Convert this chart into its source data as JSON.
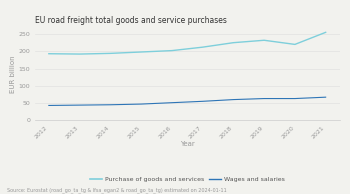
{
  "title": "EU road freight total goods and service purchases",
  "years": [
    2012,
    2013,
    2014,
    2015,
    2016,
    2017,
    2018,
    2019,
    2020,
    2021
  ],
  "purchase_of_goods": [
    193,
    192,
    194,
    198,
    202,
    212,
    225,
    232,
    220,
    255
  ],
  "wages_and_salaries": [
    43,
    44,
    45,
    47,
    51,
    55,
    60,
    63,
    63,
    67
  ],
  "color_goods": "#7ecfdb",
  "color_wages": "#2e75b6",
  "bg_color": "#f2f2ee",
  "ylabel": "EUR billion",
  "xlabel": "Year",
  "ylim": [
    0,
    270
  ],
  "yticks": [
    0,
    50,
    100,
    150,
    200,
    250
  ],
  "legend_goods": "Purchase of goods and services",
  "legend_wages": "Wages and salaries",
  "source_text": "Source: Eurostat (road_go_ta_tg & lfsa_egan2 & road_go_ta_tg) estimated on 2024-01-11",
  "title_fontsize": 5.5,
  "axis_fontsize": 5.0,
  "tick_fontsize": 4.5,
  "legend_fontsize": 4.5,
  "source_fontsize": 3.5
}
